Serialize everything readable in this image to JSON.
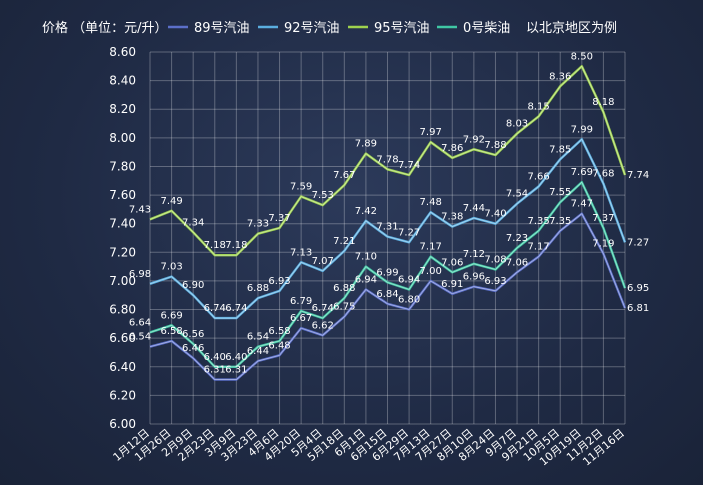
{
  "chart_data": {
    "type": "line",
    "title": "价格 （单位：元/升）",
    "note": "以北京地区为例",
    "ylim": [
      6.0,
      8.6
    ],
    "yticks": [
      "6.00",
      "6.20",
      "6.40",
      "6.60",
      "6.80",
      "7.00",
      "7.20",
      "7.40",
      "7.60",
      "7.80",
      "8.00",
      "8.20",
      "8.40",
      "8.60"
    ],
    "categories": [
      "1月12日",
      "1月26日",
      "2月9日",
      "2月23日",
      "3月9日",
      "3月23日",
      "4月6日",
      "4月20日",
      "5月4日",
      "5月18日",
      "6月1日",
      "6月15日",
      "6月29日",
      "7月13日",
      "7月27日",
      "8月10日",
      "8月24日",
      "9月7日",
      "9月21日",
      "10月5日",
      "10月19日",
      "11月2日",
      "11月16日"
    ],
    "xtick_labels": [
      "1月12日",
      "1月26日",
      "2月9日",
      "2月23日",
      "3月9日",
      "3月23日",
      "4月6日",
      "4月20日",
      "5月4日",
      "5月18日",
      "6月1日",
      "6月15日",
      "6月29日",
      "7月13日",
      "7月27日",
      "8月10日",
      "8月24日",
      "9月7日",
      "9月21日",
      "10月5日",
      "10月19日",
      "11月2日",
      "11月16日"
    ],
    "series": [
      {
        "name": "89号汽油",
        "color": "#5b6fc9",
        "values": [
          6.54,
          6.58,
          6.46,
          6.31,
          6.31,
          6.44,
          6.48,
          6.67,
          6.62,
          6.75,
          6.94,
          6.84,
          6.8,
          7.0,
          6.91,
          6.96,
          6.93,
          7.06,
          7.17,
          7.35,
          7.47,
          7.19,
          6.81
        ]
      },
      {
        "name": "92号汽油",
        "color": "#5aaee0",
        "values": [
          6.98,
          7.03,
          6.9,
          6.74,
          6.74,
          6.88,
          6.93,
          7.13,
          7.07,
          7.21,
          7.42,
          7.31,
          7.27,
          7.48,
          7.38,
          7.44,
          7.4,
          7.54,
          7.66,
          7.85,
          7.99,
          7.68,
          7.27
        ]
      },
      {
        "name": "95号汽油",
        "color": "#9ed24e",
        "values": [
          7.43,
          7.49,
          7.34,
          7.18,
          7.18,
          7.33,
          7.37,
          7.59,
          7.53,
          7.67,
          7.89,
          7.78,
          7.74,
          7.97,
          7.86,
          7.92,
          7.88,
          8.03,
          8.15,
          8.36,
          8.5,
          8.18,
          7.74
        ]
      },
      {
        "name": "0号柴油",
        "color": "#3fc7a4",
        "values": [
          6.64,
          6.69,
          6.56,
          6.4,
          6.4,
          6.54,
          6.58,
          6.79,
          6.74,
          6.88,
          7.1,
          6.99,
          6.94,
          7.17,
          7.06,
          7.12,
          7.08,
          7.23,
          7.35,
          7.55,
          7.69,
          7.37,
          6.95
        ]
      }
    ],
    "data_labels": [
      [
        "6.54",
        "6.58",
        "6.46",
        "6.31",
        "6.31",
        "6.44",
        "6.48",
        "6.67",
        "6.62",
        "6.75",
        "6.94",
        "6.84",
        "6.80",
        "7.00",
        "6.91",
        "6.96",
        "6.93",
        "7.06",
        "7.17",
        "7.35",
        "7.47",
        "7.19",
        "6.81"
      ],
      [
        "6.98",
        "7.03",
        "6.90",
        "6.74",
        "6.74",
        "6.88",
        "6.93",
        "7.13",
        "7.07",
        "7.21",
        "7.42",
        "7.31",
        "7.27",
        "7.48",
        "7.38",
        "7.44",
        "7.40",
        "7.54",
        "7.66",
        "7.85",
        "7.99",
        "7.68",
        "7.27"
      ],
      [
        "7.43",
        "7.49",
        "7.34",
        "7.18",
        "7.18",
        "7.33",
        "7.37",
        "7.59",
        "7.53",
        "7.67",
        "7.89",
        "7.78",
        "7.74",
        "7.97",
        "7.86",
        "7.92",
        "7.88",
        "8.03",
        "8.15",
        "8.36",
        "8.50",
        "8.18",
        "7.74"
      ],
      [
        "6.64",
        "6.69",
        "6.56",
        "6.40",
        "6.40",
        "6.54",
        "6.58",
        "6.79",
        "6.74",
        "6.88",
        "7.10",
        "6.99",
        "6.94",
        "7.17",
        "7.06",
        "7.12",
        "7.08",
        "7.23",
        "7.35",
        "7.55",
        "7.69",
        "7.37",
        "6.95"
      ]
    ],
    "grid": true,
    "legend": "top"
  }
}
